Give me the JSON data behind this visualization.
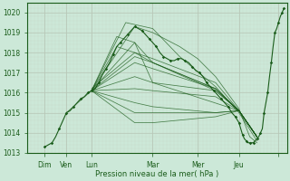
{
  "xlabel": "Pression niveau de la mer( hPa )",
  "ylim": [
    1013,
    1020.5
  ],
  "xlim": [
    0,
    145
  ],
  "yticks": [
    1013,
    1014,
    1015,
    1016,
    1017,
    1018,
    1019,
    1020
  ],
  "xtick_positions": [
    10,
    22,
    36,
    70,
    95,
    118,
    140
  ],
  "xtick_labels": [
    "Dim",
    "Ven",
    "Lun",
    "Mar",
    "Mer",
    "Jeu",
    ""
  ],
  "day_vlines": [
    10,
    22,
    36,
    70,
    95,
    118,
    140
  ],
  "bg_color": "#cce8d8",
  "line_color": "#1a5c1a",
  "grid_color_major": "#b8c8b8",
  "grid_color_minor": "#c8d8c8",
  "spaghetti_lines": [
    [
      [
        36,
        1016.1
      ],
      [
        60,
        1019.3
      ],
      [
        70,
        1019.0
      ],
      [
        85,
        1018.3
      ],
      [
        95,
        1017.7
      ],
      [
        105,
        1016.8
      ],
      [
        118,
        1015.2
      ],
      [
        124,
        1013.8
      ],
      [
        128,
        1013.5
      ]
    ],
    [
      [
        36,
        1016.1
      ],
      [
        55,
        1019.5
      ],
      [
        70,
        1019.2
      ],
      [
        85,
        1017.8
      ],
      [
        105,
        1016.3
      ],
      [
        118,
        1015.0
      ],
      [
        128,
        1013.6
      ]
    ],
    [
      [
        36,
        1016.1
      ],
      [
        50,
        1018.8
      ],
      [
        60,
        1018.5
      ],
      [
        70,
        1017.5
      ],
      [
        105,
        1016.2
      ],
      [
        118,
        1015.1
      ],
      [
        128,
        1013.8
      ]
    ],
    [
      [
        36,
        1016.1
      ],
      [
        50,
        1018.3
      ],
      [
        60,
        1018.0
      ],
      [
        70,
        1017.5
      ],
      [
        105,
        1016.1
      ],
      [
        118,
        1015.1
      ],
      [
        128,
        1013.8
      ]
    ],
    [
      [
        36,
        1016.1
      ],
      [
        60,
        1017.8
      ],
      [
        70,
        1017.5
      ],
      [
        105,
        1016.2
      ],
      [
        118,
        1015.1
      ],
      [
        128,
        1013.8
      ]
    ],
    [
      [
        36,
        1016.1
      ],
      [
        60,
        1017.5
      ],
      [
        70,
        1017.2
      ],
      [
        105,
        1016.2
      ],
      [
        118,
        1015.1
      ],
      [
        128,
        1013.8
      ]
    ],
    [
      [
        36,
        1016.1
      ],
      [
        60,
        1016.8
      ],
      [
        70,
        1016.5
      ],
      [
        105,
        1016.1
      ],
      [
        118,
        1015.1
      ],
      [
        128,
        1013.8
      ]
    ],
    [
      [
        36,
        1016.1
      ],
      [
        60,
        1016.2
      ],
      [
        70,
        1016.1
      ],
      [
        105,
        1015.8
      ],
      [
        118,
        1015.1
      ],
      [
        128,
        1013.8
      ]
    ],
    [
      [
        36,
        1016.1
      ],
      [
        60,
        1015.5
      ],
      [
        70,
        1015.3
      ],
      [
        105,
        1015.0
      ],
      [
        118,
        1015.1
      ],
      [
        128,
        1013.8
      ]
    ],
    [
      [
        36,
        1016.1
      ],
      [
        60,
        1015.0
      ],
      [
        70,
        1015.0
      ],
      [
        105,
        1015.0
      ],
      [
        118,
        1015.1
      ],
      [
        128,
        1013.8
      ]
    ],
    [
      [
        36,
        1016.1
      ],
      [
        60,
        1014.5
      ],
      [
        70,
        1014.5
      ],
      [
        105,
        1014.8
      ],
      [
        118,
        1015.1
      ],
      [
        128,
        1013.8
      ]
    ],
    [
      [
        22,
        1015.0
      ],
      [
        36,
        1016.1
      ],
      [
        60,
        1018.5
      ],
      [
        70,
        1016.5
      ],
      [
        118,
        1015.1
      ],
      [
        128,
        1013.8
      ]
    ],
    [
      [
        36,
        1016.2
      ],
      [
        60,
        1018.0
      ],
      [
        70,
        1017.7
      ],
      [
        105,
        1016.5
      ],
      [
        118,
        1015.1
      ],
      [
        128,
        1013.8
      ]
    ]
  ],
  "main_line": [
    [
      10,
      1013.3
    ],
    [
      14,
      1013.5
    ],
    [
      16,
      1013.8
    ],
    [
      18,
      1014.2
    ],
    [
      20,
      1014.6
    ],
    [
      22,
      1015.0
    ],
    [
      24,
      1015.1
    ],
    [
      26,
      1015.3
    ],
    [
      28,
      1015.5
    ],
    [
      30,
      1015.7
    ],
    [
      32,
      1015.8
    ],
    [
      34,
      1016.0
    ],
    [
      36,
      1016.1
    ],
    [
      38,
      1016.2
    ],
    [
      40,
      1016.5
    ],
    [
      42,
      1016.9
    ],
    [
      44,
      1017.2
    ],
    [
      46,
      1017.5
    ],
    [
      48,
      1017.9
    ],
    [
      50,
      1018.3
    ],
    [
      52,
      1018.5
    ],
    [
      54,
      1018.7
    ],
    [
      56,
      1018.9
    ],
    [
      58,
      1019.1
    ],
    [
      60,
      1019.3
    ],
    [
      62,
      1019.2
    ],
    [
      64,
      1019.1
    ],
    [
      66,
      1018.9
    ],
    [
      68,
      1018.7
    ],
    [
      70,
      1018.5
    ],
    [
      72,
      1018.3
    ],
    [
      74,
      1018.0
    ],
    [
      76,
      1017.8
    ],
    [
      78,
      1017.7
    ],
    [
      80,
      1017.6
    ],
    [
      82,
      1017.6
    ],
    [
      84,
      1017.7
    ],
    [
      86,
      1017.7
    ],
    [
      88,
      1017.6
    ],
    [
      90,
      1017.5
    ],
    [
      92,
      1017.3
    ],
    [
      94,
      1017.1
    ],
    [
      96,
      1017.0
    ],
    [
      98,
      1016.8
    ],
    [
      100,
      1016.5
    ],
    [
      102,
      1016.3
    ],
    [
      104,
      1016.1
    ],
    [
      106,
      1015.9
    ],
    [
      108,
      1015.7
    ],
    [
      110,
      1015.5
    ],
    [
      112,
      1015.3
    ],
    [
      114,
      1015.0
    ],
    [
      116,
      1014.8
    ],
    [
      118,
      1014.5
    ],
    [
      119,
      1014.2
    ],
    [
      120,
      1013.9
    ],
    [
      121,
      1013.7
    ],
    [
      122,
      1013.6
    ],
    [
      123,
      1013.5
    ],
    [
      124,
      1013.5
    ],
    [
      125,
      1013.5
    ],
    [
      126,
      1013.5
    ],
    [
      127,
      1013.6
    ],
    [
      128,
      1013.7
    ],
    [
      129,
      1013.8
    ],
    [
      130,
      1014.0
    ],
    [
      131,
      1014.2
    ],
    [
      132,
      1015.0
    ],
    [
      133,
      1015.5
    ],
    [
      134,
      1016.0
    ],
    [
      135,
      1016.8
    ],
    [
      136,
      1017.5
    ],
    [
      137,
      1018.3
    ],
    [
      138,
      1019.0
    ],
    [
      139,
      1019.2
    ],
    [
      140,
      1019.5
    ],
    [
      141,
      1019.8
    ],
    [
      142,
      1020.0
    ],
    [
      143,
      1020.2
    ]
  ],
  "main_line_markers": [
    [
      10,
      1013.3
    ],
    [
      14,
      1013.5
    ],
    [
      18,
      1014.2
    ],
    [
      22,
      1015.0
    ],
    [
      26,
      1015.3
    ],
    [
      30,
      1015.7
    ],
    [
      34,
      1016.0
    ],
    [
      36,
      1016.1
    ],
    [
      40,
      1016.5
    ],
    [
      44,
      1017.2
    ],
    [
      48,
      1017.9
    ],
    [
      52,
      1018.5
    ],
    [
      56,
      1018.9
    ],
    [
      60,
      1019.3
    ],
    [
      64,
      1019.1
    ],
    [
      68,
      1018.7
    ],
    [
      72,
      1018.3
    ],
    [
      76,
      1017.8
    ],
    [
      80,
      1017.6
    ],
    [
      84,
      1017.7
    ],
    [
      88,
      1017.6
    ],
    [
      92,
      1017.3
    ],
    [
      96,
      1017.0
    ],
    [
      100,
      1016.5
    ],
    [
      104,
      1016.1
    ],
    [
      108,
      1015.7
    ],
    [
      112,
      1015.3
    ],
    [
      116,
      1014.8
    ],
    [
      118,
      1014.5
    ],
    [
      120,
      1013.9
    ],
    [
      122,
      1013.6
    ],
    [
      124,
      1013.5
    ],
    [
      126,
      1013.5
    ],
    [
      128,
      1013.7
    ],
    [
      130,
      1014.0
    ],
    [
      132,
      1015.0
    ],
    [
      134,
      1016.0
    ],
    [
      136,
      1017.5
    ],
    [
      138,
      1019.0
    ],
    [
      140,
      1019.5
    ],
    [
      142,
      1020.0
    ],
    [
      143,
      1020.2
    ]
  ]
}
